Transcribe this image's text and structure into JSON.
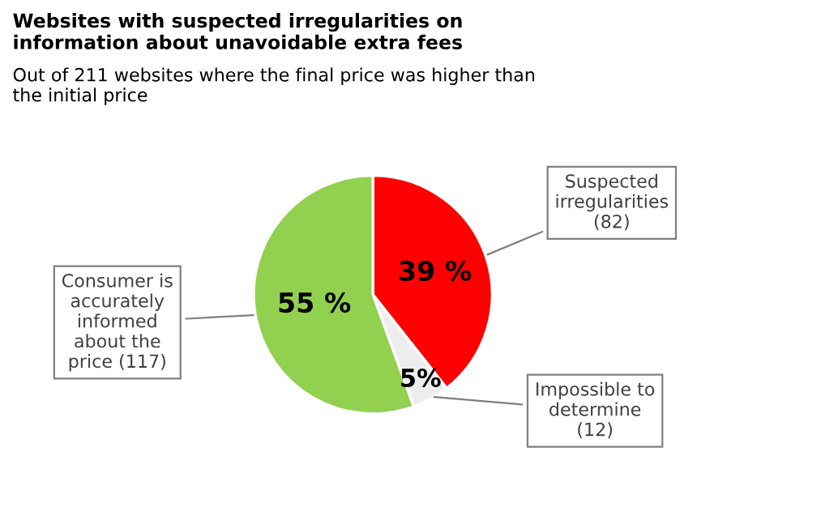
{
  "chart_data": {
    "type": "pie",
    "title": "Websites with suspected irregularities on\ninformation about unavoidable extra fees",
    "subtitle": "Out of 211 websites where the final price was higher than\nthe initial price",
    "categories": [
      "Suspected\nirregularities\n(82)",
      "Impossible to\ndetermine\n(12)",
      "Consumer is\naccurately\ninformed\nabout the\nprice (117)"
    ],
    "values": [
      39,
      5,
      55
    ],
    "colors": [
      "#ff0000",
      "#ededed",
      "#92d050"
    ],
    "value_labels": [
      "39 %",
      "5%",
      "55 %"
    ]
  }
}
